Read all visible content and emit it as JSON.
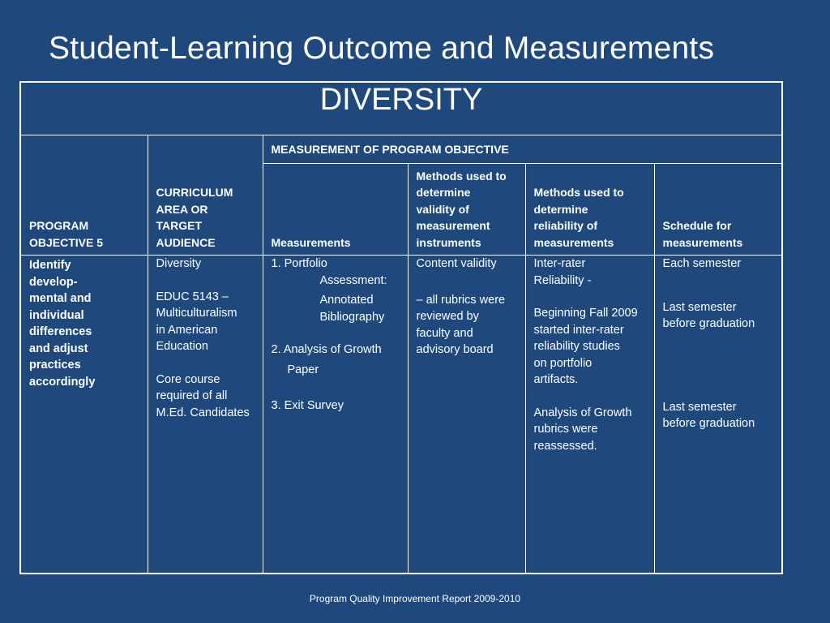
{
  "slide": {
    "title": "Student-Learning Outcome and Measurements",
    "footer": "Program Quality Improvement Report  2009-2010"
  },
  "table": {
    "title": "DIVERSITY",
    "measurement_group_header": "MEASUREMENT OF PROGRAM OBJECTIVE",
    "headers": {
      "objective": [
        "PROGRAM",
        "OBJECTIVE 5"
      ],
      "curriculum": [
        "CURRICULUM",
        "AREA OR",
        "TARGET",
        "AUDIENCE"
      ],
      "measurements": [
        "Measurements"
      ],
      "validity": [
        "Methods used to",
        "determine",
        "validity of",
        "measurement",
        "instruments"
      ],
      "reliability": [
        "Methods used to",
        "determine",
        "reliability of",
        "measurements"
      ],
      "schedule": [
        "Schedule for",
        "measurements"
      ]
    },
    "objective_text": [
      "Identify",
      "develop-",
      "mental  and",
      "individual",
      "differences",
      "and adjust",
      "practices",
      "accordingly"
    ],
    "curriculum": {
      "area": "Diversity",
      "course": [
        "EDUC 5143 –",
        "Multiculturalism",
        "in American",
        "Education"
      ],
      "note": [
        "Core course",
        "required of all",
        "M.Ed. Candidates"
      ]
    },
    "measurements": {
      "item1": [
        "1.  Portfolio",
        "Assessment:"
      ],
      "item1_sub": [
        "Annotated",
        "Bibliography"
      ],
      "item2": [
        "2.  Analysis of Growth",
        "Paper"
      ],
      "item3": "3.  Exit Survey"
    },
    "validity": {
      "method": "Content validity",
      "detail": [
        "– all rubrics were",
        "reviewed by",
        "faculty and",
        "advisory board"
      ]
    },
    "reliability": {
      "method": [
        "Inter-rater",
        "Reliability -"
      ],
      "detail1": [
        "Beginning Fall 2009",
        "started inter-rater",
        "reliability studies",
        "on portfolio",
        "artifacts."
      ],
      "detail2": [
        "Analysis of Growth",
        "rubrics were",
        "reassessed."
      ]
    },
    "schedule": {
      "s1": "Each semester",
      "s2": [
        "Last semester",
        "before graduation"
      ],
      "s3": [
        "Last semester",
        "before graduation"
      ]
    }
  }
}
